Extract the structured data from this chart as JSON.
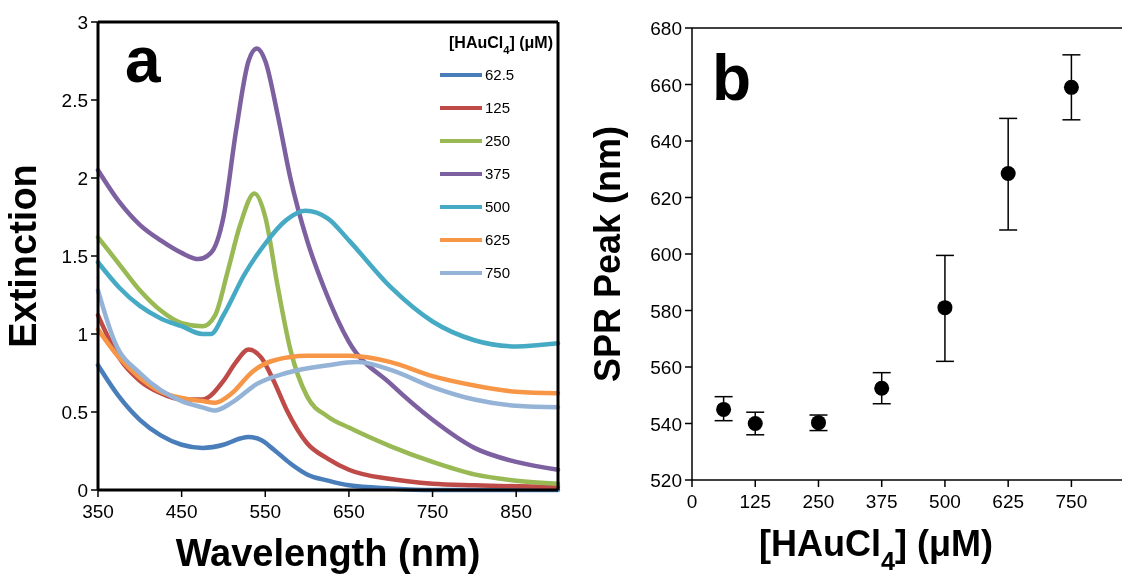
{
  "chart_data": [
    {
      "type": "line",
      "title": "a",
      "xlabel": "Wavelength (nm)",
      "ylabel": "Extinction",
      "legend_title": "[HAuCl$_{4}$] (μM)",
      "legend": "top right",
      "xlim": [
        350,
        900
      ],
      "xticks": [
        350,
        450,
        550,
        650,
        750,
        850
      ],
      "ylim": [
        0,
        3
      ],
      "yticks": [
        0,
        0.5,
        1,
        1.5,
        2,
        2.5,
        3
      ],
      "series": [
        {
          "name": "62.5",
          "color": "#4a7ebb",
          "x": [
            350,
            375,
            400,
            425,
            450,
            475,
            500,
            520,
            530,
            545,
            560,
            580,
            600,
            625,
            650,
            700,
            750,
            900
          ],
          "values": [
            0.8,
            0.6,
            0.45,
            0.35,
            0.29,
            0.27,
            0.29,
            0.33,
            0.34,
            0.32,
            0.26,
            0.17,
            0.1,
            0.06,
            0.03,
            0.01,
            0,
            0
          ]
        },
        {
          "name": "125",
          "color": "#be4b48",
          "x": [
            350,
            375,
            400,
            425,
            450,
            475,
            500,
            515,
            530,
            545,
            560,
            575,
            600,
            625,
            650,
            700,
            750,
            800,
            900
          ],
          "values": [
            1.12,
            0.85,
            0.7,
            0.62,
            0.58,
            0.58,
            0.7,
            0.82,
            0.9,
            0.85,
            0.7,
            0.52,
            0.3,
            0.2,
            0.13,
            0.07,
            0.04,
            0.03,
            0.02
          ]
        },
        {
          "name": "250",
          "color": "#98b954",
          "x": [
            350,
            375,
            400,
            425,
            450,
            475,
            490,
            505,
            520,
            537,
            550,
            565,
            580,
            600,
            625,
            650,
            700,
            750,
            800,
            850,
            900
          ],
          "values": [
            1.62,
            1.45,
            1.28,
            1.15,
            1.07,
            1.05,
            1.12,
            1.4,
            1.7,
            1.9,
            1.75,
            1.3,
            0.9,
            0.6,
            0.47,
            0.4,
            0.28,
            0.18,
            0.1,
            0.06,
            0.04
          ]
        },
        {
          "name": "375",
          "color": "#7d60a0",
          "x": [
            350,
            375,
            400,
            425,
            450,
            470,
            485,
            500,
            515,
            530,
            540,
            550,
            565,
            580,
            600,
            620,
            650,
            700,
            750,
            800,
            850,
            900
          ],
          "values": [
            2.05,
            1.85,
            1.7,
            1.6,
            1.52,
            1.48,
            1.52,
            1.75,
            2.3,
            2.75,
            2.83,
            2.75,
            2.4,
            2.0,
            1.6,
            1.3,
            0.95,
            0.68,
            0.45,
            0.27,
            0.18,
            0.13
          ]
        },
        {
          "name": "500",
          "color": "#46aac5",
          "x": [
            350,
            375,
            400,
            425,
            450,
            475,
            485,
            500,
            525,
            550,
            575,
            598,
            625,
            650,
            700,
            750,
            800,
            850,
            900
          ],
          "values": [
            1.46,
            1.3,
            1.18,
            1.1,
            1.05,
            1.0,
            1.0,
            1.12,
            1.38,
            1.58,
            1.73,
            1.79,
            1.74,
            1.6,
            1.3,
            1.08,
            0.96,
            0.92,
            0.94
          ]
        },
        {
          "name": "625",
          "color": "#f79646",
          "x": [
            350,
            375,
            400,
            425,
            450,
            475,
            490,
            510,
            535,
            560,
            600,
            650,
            700,
            750,
            800,
            850,
            900
          ],
          "values": [
            1.03,
            0.85,
            0.72,
            0.63,
            0.59,
            0.57,
            0.56,
            0.62,
            0.76,
            0.83,
            0.86,
            0.86,
            0.82,
            0.73,
            0.67,
            0.63,
            0.62
          ]
        },
        {
          "name": "750",
          "color": "#95b3d7",
          "x": [
            350,
            370,
            400,
            425,
            450,
            475,
            490,
            510,
            540,
            575,
            625,
            660,
            700,
            750,
            800,
            850,
            900
          ],
          "values": [
            1.28,
            0.95,
            0.75,
            0.64,
            0.57,
            0.53,
            0.51,
            0.56,
            0.68,
            0.75,
            0.8,
            0.82,
            0.77,
            0.66,
            0.58,
            0.54,
            0.53
          ]
        }
      ]
    },
    {
      "type": "scatter",
      "title": "b",
      "xlabel": "[HAuCl$_{4}$] (μM)",
      "ylabel": "SPR Peak (nm)",
      "marker": "circle",
      "xlim": [
        0,
        850
      ],
      "xticks": [
        0,
        125,
        250,
        375,
        500,
        625,
        750
      ],
      "ylim": [
        520,
        680
      ],
      "yticks": [
        520,
        540,
        560,
        580,
        600,
        620,
        640,
        660,
        680
      ],
      "series": [
        {
          "color": "#000000",
          "x": [
            62.5,
            125,
            250,
            375,
            500,
            625,
            750
          ],
          "values": [
            545,
            540,
            540.3,
            552.5,
            581,
            628.5,
            659
          ],
          "errors": [
            [
              541,
              549.5
            ],
            [
              536,
              544
            ],
            [
              537.5,
              543
            ],
            [
              547,
              558
            ],
            [
              562,
              599.5
            ],
            [
              608.5,
              648
            ],
            [
              647.5,
              670.5
            ]
          ]
        }
      ]
    }
  ]
}
